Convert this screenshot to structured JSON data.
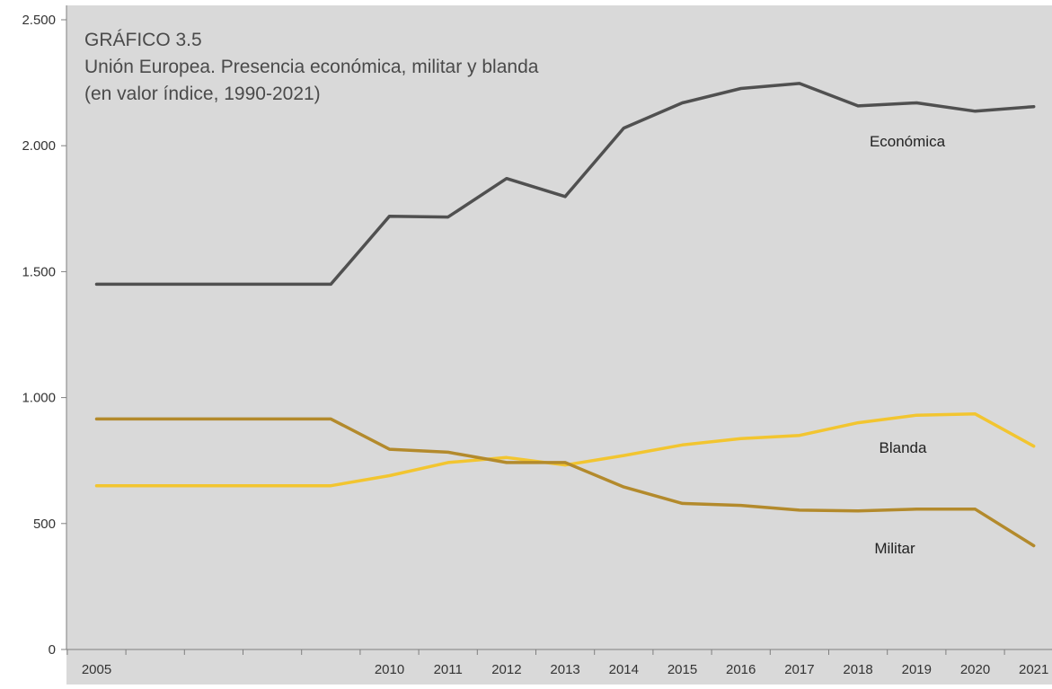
{
  "chart_data": {
    "type": "line",
    "title": "GRÁFICO 3.5",
    "subtitle": "Unión Europea. Presencia económica, militar y blanda",
    "subtitle2": "(en valor índice, 1990-2021)",
    "xlabel": "",
    "ylabel": "",
    "ylim": [
      0,
      2500
    ],
    "y_ticks": [
      0,
      500,
      1000,
      1500,
      2000,
      2500
    ],
    "y_tick_labels": [
      "0",
      "500",
      "1.000",
      "1.500",
      "2.000",
      "2.500"
    ],
    "categories": [
      "2005",
      "2006",
      "2007",
      "2008",
      "2009",
      "2010",
      "2011",
      "2012",
      "2013",
      "2014",
      "2015",
      "2016",
      "2017",
      "2018",
      "2019",
      "2020",
      "2021"
    ],
    "x_tick_labels": [
      "2005",
      "",
      "",
      "",
      "",
      "2010",
      "2011",
      "2012",
      "2013",
      "2014",
      "2015",
      "2016",
      "2017",
      "2018",
      "2019",
      "2020",
      "2021"
    ],
    "grid": false,
    "legend": "inline labels",
    "series": [
      {
        "name": "Económica",
        "color": "#505050",
        "values": [
          1450,
          1450,
          1450,
          1450,
          1450,
          1720,
          1717,
          1870,
          1798,
          2070,
          2170,
          2227,
          2247,
          2158,
          2170,
          2137,
          2155
        ]
      },
      {
        "name": "Blanda",
        "color": "#f2c530",
        "values": [
          650,
          650,
          650,
          650,
          650,
          690,
          742,
          762,
          732,
          770,
          812,
          837,
          850,
          900,
          930,
          935,
          807
        ]
      },
      {
        "name": "Militar",
        "color": "#b38a2c",
        "values": [
          915,
          915,
          915,
          915,
          915,
          795,
          783,
          742,
          742,
          645,
          580,
          572,
          553,
          550,
          557,
          557,
          412
        ]
      }
    ]
  }
}
